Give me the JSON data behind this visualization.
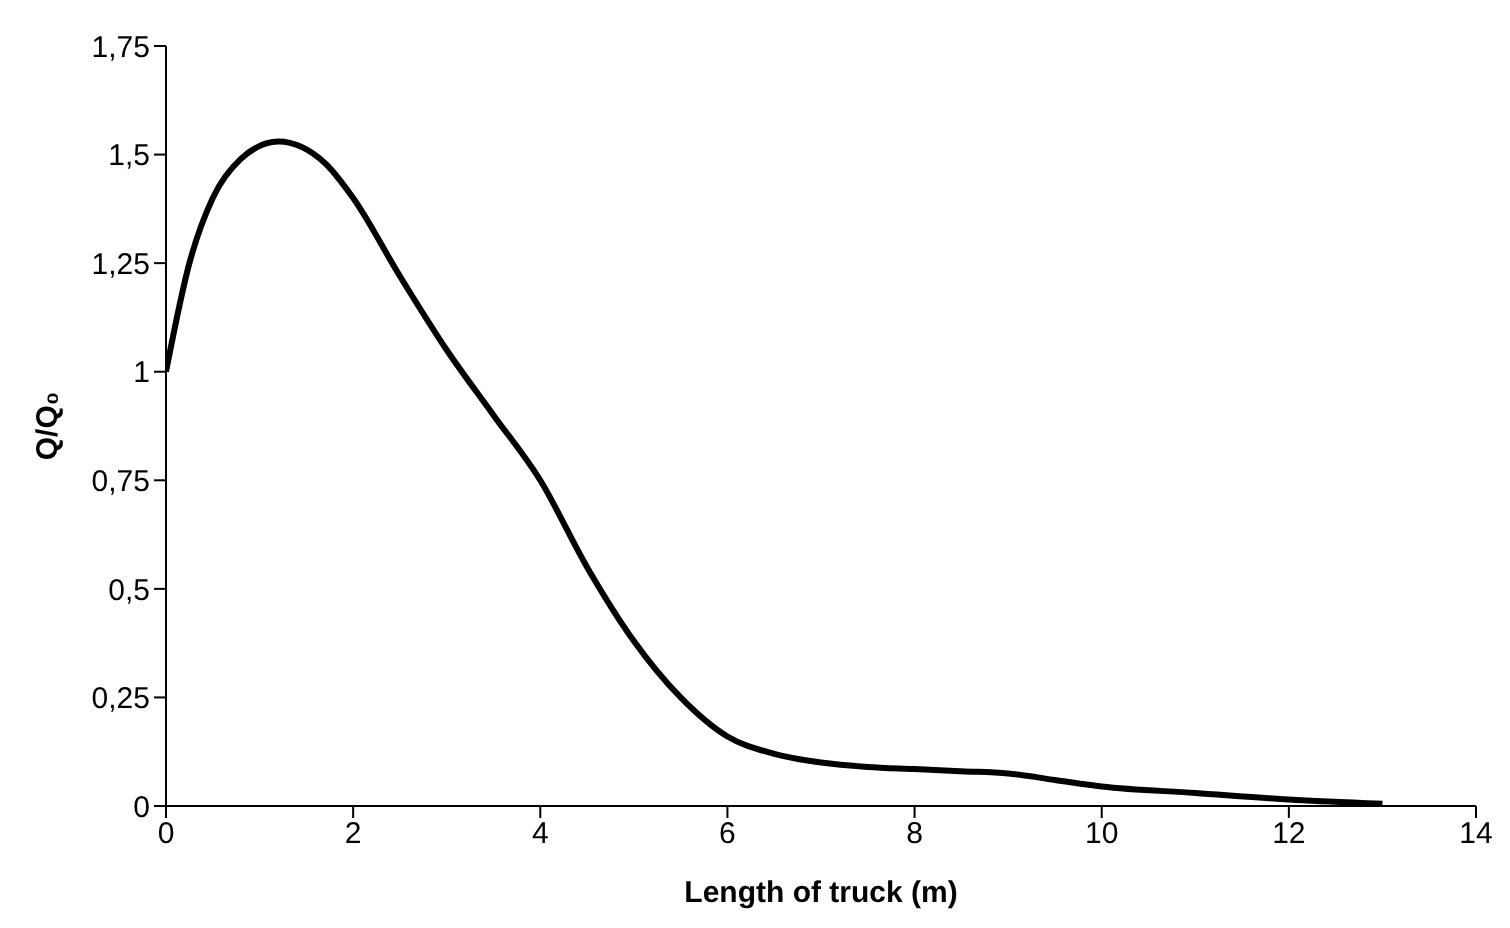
{
  "chart_data": {
    "type": "line",
    "xlabel": "Length of truck (m)",
    "ylabel": "Q/Q₀",
    "x": [
      0,
      0.25,
      0.5,
      0.8,
      1.2,
      1.7,
      2,
      2.5,
      3,
      3.5,
      4,
      4.5,
      5,
      5.5,
      6,
      6.5,
      7,
      7.5,
      8,
      8.5,
      9,
      9.5,
      10,
      11,
      12,
      13
    ],
    "series": [
      {
        "color": "#000000",
        "values": [
          1.0,
          1.25,
          1.4,
          1.49,
          1.53,
          1.48,
          1.4,
          1.22,
          1.05,
          0.9,
          0.75,
          0.55,
          0.38,
          0.25,
          0.16,
          0.12,
          0.1,
          0.09,
          0.085,
          0.08,
          0.075,
          0.06,
          0.045,
          0.03,
          0.015,
          0.005
        ]
      }
    ],
    "xlim": [
      0,
      14
    ],
    "xticks": [
      0,
      2,
      4,
      6,
      8,
      10,
      12,
      14
    ],
    "ylim": [
      0,
      1.75
    ],
    "yticks": [
      0,
      {
        "value": 0.25,
        "label": "0,25"
      },
      {
        "value": 0.5,
        "label": "0,5"
      },
      {
        "value": 0.75,
        "label": "0,75"
      },
      1,
      {
        "value": 1.25,
        "label": "1,25"
      },
      {
        "value": 1.5,
        "label": "1,5"
      },
      {
        "value": 1.75,
        "label": "1,75"
      }
    ],
    "grid": false,
    "legend": false,
    "marker": "none",
    "line_style": "solid"
  }
}
